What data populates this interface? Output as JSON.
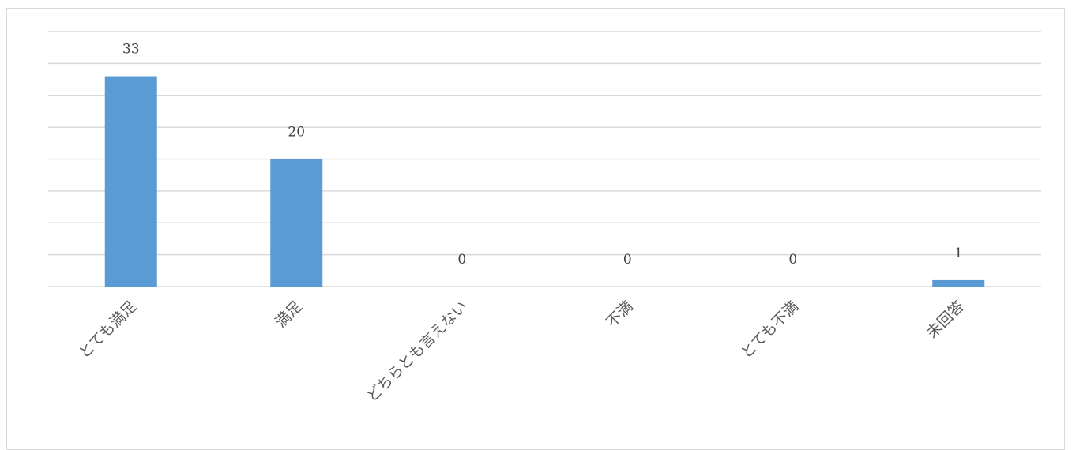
{
  "chart_data": {
    "type": "bar",
    "categories": [
      "とても満足",
      "満足",
      "どちらとも言えない",
      "不満",
      "とても不満",
      "未回答"
    ],
    "values": [
      33,
      20,
      0,
      0,
      0,
      1
    ],
    "data_labels": [
      "33",
      "20",
      "0",
      "0",
      "0",
      "1"
    ],
    "title": "",
    "xlabel": "",
    "ylabel": "",
    "ylim": [
      0,
      40
    ],
    "grid": true,
    "legend": "none",
    "bar_color": "#5b9bd5",
    "gridline_color": "#d9d9d9"
  }
}
